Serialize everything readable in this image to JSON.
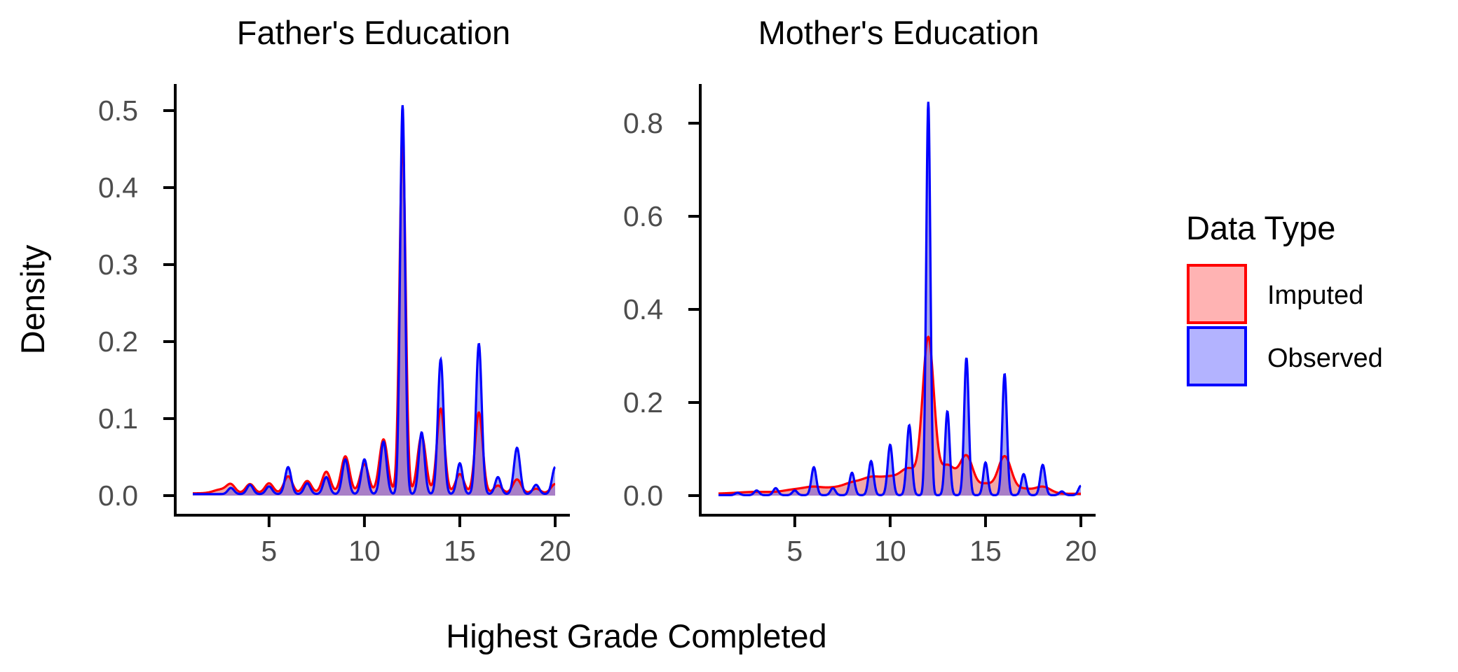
{
  "figure": {
    "ylabel": "Density",
    "xlabel": "Highest Grade Completed"
  },
  "legend": {
    "title": "Data Type",
    "placement": "right",
    "items": [
      {
        "label": "Imputed",
        "fill": "#ffb3b3",
        "stroke": "#ff0000"
      },
      {
        "label": "Observed",
        "fill": "#b3b3ff",
        "stroke": "#0000ff"
      }
    ]
  },
  "colors": {
    "imputed_line": "#ff0000",
    "observed_line": "#0000ff",
    "overlap_fill": "#a97fc7",
    "observed_only_fill": "#a6a6ef",
    "imputed_only_fill": "#f0a8a8",
    "axis": "#000000",
    "tick_label": "#4d4d4d"
  },
  "chart_data": [
    {
      "type": "area",
      "title": "Father's Education",
      "xlim": [
        1,
        20
      ],
      "ylim": [
        0,
        0.52
      ],
      "xticks": [
        5,
        10,
        15,
        20
      ],
      "yticks": [
        0.0,
        0.1,
        0.2,
        0.3,
        0.4,
        0.5
      ],
      "ytick_labels": [
        "0.0",
        "0.1",
        "0.2",
        "0.3",
        "0.4",
        "0.5"
      ],
      "grid": false,
      "series": [
        {
          "name": "Imputed",
          "baseline": 0.003,
          "peaks": [
            [
              2.5,
              0.005
            ],
            [
              3,
              0.01
            ],
            [
              4,
              0.012
            ],
            [
              5,
              0.013
            ],
            [
              6,
              0.022
            ],
            [
              7,
              0.016
            ],
            [
              8,
              0.028
            ],
            [
              9,
              0.048
            ],
            [
              10,
              0.038
            ],
            [
              11,
              0.07
            ],
            [
              12,
              0.46
            ],
            [
              13,
              0.075
            ],
            [
              14,
              0.11
            ],
            [
              15,
              0.025
            ],
            [
              16,
              0.105
            ],
            [
              17,
              0.01
            ],
            [
              18,
              0.018
            ],
            [
              19,
              0.006
            ],
            [
              20,
              0.012
            ]
          ],
          "widths": [
            0.4,
            0.22,
            0.22,
            0.22,
            0.22,
            0.22,
            0.22,
            0.22,
            0.22,
            0.22,
            0.16,
            0.22,
            0.2,
            0.22,
            0.2,
            0.22,
            0.22,
            0.22,
            0.22
          ]
        },
        {
          "name": "Observed",
          "baseline": 0.002,
          "peaks": [
            [
              3,
              0.008
            ],
            [
              4,
              0.012
            ],
            [
              5,
              0.01
            ],
            [
              6,
              0.035
            ],
            [
              7,
              0.014
            ],
            [
              8,
              0.022
            ],
            [
              9,
              0.045
            ],
            [
              10,
              0.045
            ],
            [
              11,
              0.068
            ],
            [
              12,
              0.505
            ],
            [
              13,
              0.08
            ],
            [
              14,
              0.175
            ],
            [
              15,
              0.04
            ],
            [
              16,
              0.195
            ],
            [
              17,
              0.022
            ],
            [
              18,
              0.06
            ],
            [
              19,
              0.012
            ],
            [
              20,
              0.035
            ]
          ],
          "widths": [
            0.16,
            0.16,
            0.16,
            0.16,
            0.16,
            0.16,
            0.16,
            0.16,
            0.16,
            0.13,
            0.15,
            0.15,
            0.15,
            0.15,
            0.15,
            0.16,
            0.16,
            0.16
          ]
        }
      ]
    },
    {
      "type": "area",
      "title": "Mother's Education",
      "xlim": [
        1,
        20
      ],
      "ylim": [
        0,
        0.85
      ],
      "xticks": [
        5,
        10,
        15,
        20
      ],
      "yticks": [
        0.0,
        0.2,
        0.4,
        0.6,
        0.8
      ],
      "ytick_labels": [
        "0.0",
        "0.2",
        "0.4",
        "0.6",
        "0.8"
      ],
      "grid": false,
      "series": [
        {
          "name": "Imputed",
          "baseline": 0.004,
          "peaks": [
            [
              3,
              0.004
            ],
            [
              5,
              0.008
            ],
            [
              6,
              0.012
            ],
            [
              7,
              0.01
            ],
            [
              8,
              0.02
            ],
            [
              9,
              0.03
            ],
            [
              10,
              0.03
            ],
            [
              11,
              0.05
            ],
            [
              12,
              0.33
            ],
            [
              13,
              0.06
            ],
            [
              14,
              0.08
            ],
            [
              15,
              0.02
            ],
            [
              16,
              0.08
            ],
            [
              17,
              0.01
            ],
            [
              18,
              0.015
            ]
          ],
          "widths": [
            1.0,
            0.6,
            0.5,
            0.5,
            0.5,
            0.5,
            0.5,
            0.45,
            0.3,
            0.4,
            0.35,
            0.35,
            0.35,
            0.4,
            0.4
          ]
        },
        {
          "name": "Observed",
          "baseline": 0.001,
          "peaks": [
            [
              2,
              0.005
            ],
            [
              3,
              0.01
            ],
            [
              4,
              0.015
            ],
            [
              5,
              0.01
            ],
            [
              6,
              0.06
            ],
            [
              7,
              0.015
            ],
            [
              8,
              0.048
            ],
            [
              9,
              0.073
            ],
            [
              10,
              0.108
            ],
            [
              11,
              0.15
            ],
            [
              12,
              0.845
            ],
            [
              13,
              0.18
            ],
            [
              14,
              0.295
            ],
            [
              15,
              0.07
            ],
            [
              16,
              0.26
            ],
            [
              17,
              0.045
            ],
            [
              18,
              0.065
            ],
            [
              19,
              0.008
            ],
            [
              20,
              0.02
            ]
          ],
          "widths": [
            0.13,
            0.13,
            0.13,
            0.13,
            0.13,
            0.13,
            0.13,
            0.13,
            0.13,
            0.13,
            0.11,
            0.12,
            0.12,
            0.12,
            0.12,
            0.13,
            0.13,
            0.13,
            0.13
          ]
        }
      ]
    }
  ]
}
